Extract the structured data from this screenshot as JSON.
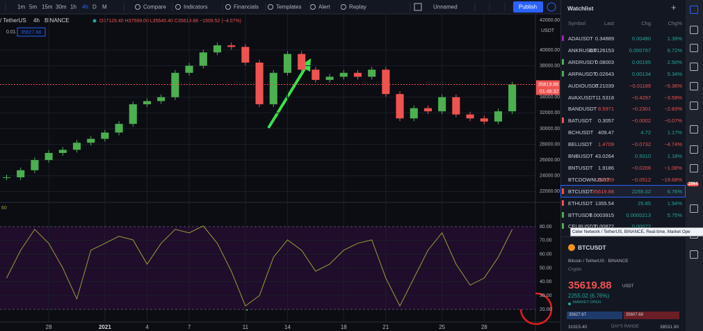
{
  "toolbar": {
    "intervals": [
      "1m",
      "5m",
      "15m",
      "30m",
      "1h",
      "4h",
      "D",
      "M"
    ],
    "buttons": [
      "Compare",
      "Indicators",
      "Financials",
      "Templates",
      "Alert",
      "Replay"
    ],
    "layout_name": "Unnamed",
    "publish": "Publish"
  },
  "chart": {
    "symbol": "/ TetherUS",
    "interval": "4h",
    "exchange": "BINANCE",
    "ohlc": "O37129.40 H37569.00 L35540.40 C35619.88 −1509.52 (−4.07%)",
    "price_input": "35627.68",
    "step_input": "0.01"
  },
  "chart_data": [
    {
      "type": "candlestick",
      "unit_label": "USDT",
      "top_label": "42000.00",
      "last_price_label": "35619.88",
      "countdown": "01:48:32",
      "color_up": "#4caf50",
      "color_down": "#ef5350",
      "x": [
        -3,
        -2,
        -1,
        0,
        1,
        2,
        3,
        4,
        5,
        6,
        7,
        8,
        9,
        10,
        11,
        12,
        13,
        14,
        15,
        16,
        17,
        18,
        19,
        20,
        21,
        22,
        23,
        24,
        25,
        26,
        27,
        28,
        29,
        30,
        31,
        32,
        33
      ],
      "values": [
        23800,
        24700,
        26000,
        26900,
        27300,
        28200,
        28700,
        29500,
        30600,
        33100,
        33500,
        34000,
        37100,
        38000,
        39700,
        40600,
        40400,
        38400,
        33100,
        37100,
        39500,
        37500,
        36200,
        36600,
        37100,
        36600,
        37500,
        34400,
        31300,
        32600,
        32200,
        34000,
        31800,
        31300,
        30900,
        32200,
        35619.88
      ],
      "xlim": [
        -3.47,
        34.65
      ],
      "ylim": [
        20700,
        44600
      ],
      "yticks": [
        {
          "value": 40000,
          "label": "40000.00"
        },
        {
          "value": 38000,
          "label": "38000.00"
        },
        {
          "value": 34000,
          "label": "34000.00"
        },
        {
          "value": 32000,
          "label": "32000.00"
        },
        {
          "value": 30000,
          "label": "30000.00"
        },
        {
          "value": 28000,
          "label": "28000.00"
        },
        {
          "value": 26000,
          "label": "26000.00"
        },
        {
          "value": 24000,
          "label": "24000.00"
        },
        {
          "value": 22000,
          "label": "22000.00"
        }
      ],
      "xticks": [
        {
          "value": 0,
          "label": "28"
        },
        {
          "value": 4,
          "label": "2021"
        },
        {
          "value": 7,
          "label": "4"
        },
        {
          "value": 10,
          "label": "7"
        },
        {
          "value": 14,
          "label": "11"
        },
        {
          "value": 17,
          "label": "14"
        },
        {
          "value": 21,
          "label": "18"
        },
        {
          "value": 24,
          "label": "21"
        },
        {
          "value": 28,
          "label": "25"
        },
        {
          "value": 31,
          "label": "28"
        }
      ],
      "grid": true
    },
    {
      "type": "line",
      "label": "60",
      "color": "#9e9d3c",
      "band": [
        20,
        80
      ],
      "band_color": "#1f0d2b",
      "x": [
        -3,
        -2,
        -1,
        0,
        1,
        2,
        3,
        4,
        5,
        6,
        7,
        8,
        9,
        10,
        11,
        12,
        13,
        14,
        15,
        16,
        17,
        18,
        19,
        20,
        21,
        22,
        23,
        24,
        25,
        26,
        27,
        28,
        29,
        30,
        31,
        32,
        33
      ],
      "values": [
        42.7,
        62.9,
        78,
        67.9,
        50,
        27.6,
        62.9,
        67.9,
        73,
        70.4,
        52.8,
        67.9,
        78,
        75.5,
        80.5,
        67.9,
        47.7,
        22.5,
        30,
        57.8,
        70.4,
        62.9,
        47.7,
        52.8,
        62.9,
        67.9,
        70.4,
        42.7,
        22.5,
        42.7,
        62.9,
        75.5,
        52.8,
        37.6,
        42.7,
        57.8,
        78
      ],
      "xlim": [
        -3.47,
        34.65
      ],
      "ylim": [
        11.4,
        97.1
      ],
      "yticks": [
        {
          "value": 80,
          "label": "80.00"
        },
        {
          "value": 70,
          "label": "70.00"
        },
        {
          "value": 60,
          "label": "60.00"
        },
        {
          "value": 50,
          "label": "50.00"
        },
        {
          "value": 40,
          "label": "40.00"
        },
        {
          "value": 30,
          "label": "30.00"
        },
        {
          "value": 20,
          "label": "20.00"
        }
      ],
      "grid": true
    }
  ],
  "watchlist": {
    "title": "Watchlist",
    "columns": [
      "Symbol",
      "Last",
      "Chg",
      "Chg%"
    ],
    "rows": [
      [
        "ADAUSDT",
        "0.34889",
        "0.00480",
        "1.39%"
      ],
      [
        "ANKRUSDT",
        "0.0126153",
        "0.000797",
        "6.72%"
      ],
      [
        "ARDRUSDT",
        "0.08003",
        "0.00195",
        "2.50%"
      ],
      [
        "ARPAUSDT",
        "0.02643",
        "0.00134",
        "5.34%"
      ],
      [
        "AUDIOUSDT",
        "0.21039",
        "−0.01189",
        "−5.36%"
      ],
      [
        "AVAXUSDT",
        "11.5318",
        "−0.4297",
        "−3.59%"
      ],
      [
        "BANDUSDT",
        "8.5971",
        "−0.2301",
        "−2.83%"
      ],
      [
        "BATUSDT",
        "0.3057",
        "−0.0002",
        "−0.07%"
      ],
      [
        "BCHUSDT",
        "409.47",
        "4.72",
        "1.17%"
      ],
      [
        "BELUSDT",
        "1.4709",
        "−0.0732",
        "−4.74%"
      ],
      [
        "BNBUSDT",
        "43.0264",
        "0.5010",
        "1.18%"
      ],
      [
        "BNTUSDT",
        "1.9186",
        "−0.0206",
        "−1.06%"
      ],
      [
        "BTCDOWNUSDT",
        "0.2089",
        "−0.0512",
        "−19.68%"
      ],
      [
        "BTCUSDT",
        "35619.88",
        "2255.02",
        "6.76%"
      ],
      [
        "ETHUSDT",
        "1355.54",
        "25.85",
        "1.94%"
      ],
      [
        "BTTUSDT",
        "0.0003915",
        "0.0000213",
        "5.75%"
      ],
      [
        "CELRUSDT",
        "0.00872",
        "0.00072"
      ]
    ],
    "selected": 13
  },
  "tooltip": "Celer Network / TetherUS, BINANCE, Real-time, Market Ope",
  "badge": "2964",
  "detail": {
    "symbol": "BTCUSDT",
    "description": "Bitcoin / TetherUS · BINANCE",
    "category": "Crypto",
    "price": "35619.88",
    "currency": "USDT",
    "change": "2255.02 (6.76%)",
    "status": "MARKET OPEN",
    "bid": "35627.67",
    "ask": "35607.68",
    "range_low": "31915.40",
    "range_label": "DAY'S RANGE",
    "range_high": "38531.90"
  }
}
